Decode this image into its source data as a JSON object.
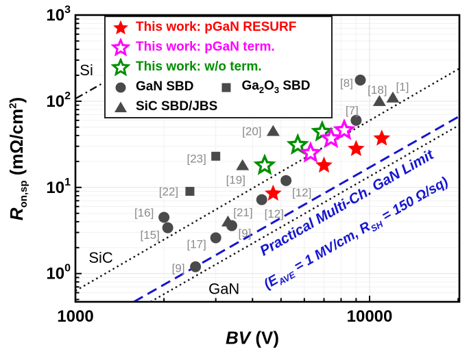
{
  "colors": {
    "red": "#ff0000",
    "magenta": "#ff00ff",
    "green": "#008f00",
    "gray_marker": "#4a4a4a",
    "blue": "#1515d0",
    "ref_label_gray": "#8a8a8a",
    "black": "#000000"
  },
  "axis_labels": {
    "y_var": "R",
    "y_sub": "on,sp",
    "y_mid": " (mΩ/cm",
    "y_sup": "2",
    "y_end": ")",
    "x_var": "BV",
    "x_unit": " (V)"
  },
  "ticks": {
    "x": [
      {
        "value": 1000,
        "label": "1000"
      },
      {
        "value": 10000,
        "label": "10000"
      }
    ],
    "y": [
      {
        "value": 1000,
        "base": "10",
        "exp": "3"
      },
      {
        "value": 100,
        "base": "10",
        "exp": "2"
      },
      {
        "value": 10,
        "base": "10",
        "exp": "1"
      },
      {
        "value": 1,
        "base": "10",
        "exp": "0"
      }
    ]
  },
  "legend": {
    "rows": [
      {
        "items": [
          {
            "marker": "star-filled",
            "color": "#ff0000",
            "label_parts": [
              {
                "t": "This work: pGaN RESURF"
              }
            ],
            "label_color": "#ff0000"
          }
        ]
      },
      {
        "items": [
          {
            "marker": "star-open",
            "color": "#ff00ff",
            "label_parts": [
              {
                "t": "This work: pGaN term."
              }
            ],
            "label_color": "#ff00ff"
          }
        ]
      },
      {
        "items": [
          {
            "marker": "star-open",
            "color": "#008f00",
            "label_parts": [
              {
                "t": "This work: w/o term."
              }
            ],
            "label_color": "#008f00"
          }
        ]
      },
      {
        "items": [
          {
            "marker": "circle",
            "color": "#4a4a4a",
            "label_parts": [
              {
                "t": "GaN SBD"
              }
            ],
            "label_color": "#000000"
          },
          {
            "marker": "square",
            "color": "#4a4a4a",
            "label_parts": [
              {
                "t": "Ga"
              },
              {
                "t": "2",
                "sub": true
              },
              {
                "t": "O"
              },
              {
                "t": "3",
                "sub": true
              },
              {
                "t": " SBD"
              }
            ],
            "label_color": "#000000"
          }
        ]
      },
      {
        "items": [
          {
            "marker": "triangle",
            "color": "#4a4a4a",
            "label_parts": [
              {
                "t": "SiC SBD/JBS"
              }
            ],
            "label_color": "#000000"
          }
        ]
      }
    ]
  },
  "annotation": {
    "line1": "Practical Multi-Ch. GaN Limit",
    "l2_p1": "(E",
    "l2_s1": "AVE",
    "l2_p2": " = 1 MV/cm, R",
    "l2_s2": "SH",
    "l2_p3": " = 150 Ω/sq)",
    "color": "#1515d0"
  },
  "chart_data": {
    "type": "scatter",
    "title": "",
    "xlabel": "BV (V)",
    "ylabel": "R_on,sp (mΩ/cm²)",
    "log_x": true,
    "log_y": true,
    "xlim": [
      1000,
      20200
    ],
    "ylim": [
      0.47,
      1000
    ],
    "grid": true,
    "legend_position": "top-left",
    "series": [
      {
        "name": "GaN SBD",
        "marker": "circle",
        "fill": "filled",
        "color": "#4a4a4a",
        "points": [
          {
            "bv": 2000,
            "ron": 4.5,
            "ref": "[16]",
            "dx": -29,
            "dy": -7
          },
          {
            "bv": 2060,
            "ron": 3.4,
            "ref": "[15]",
            "dx": -26,
            "dy": 10
          },
          {
            "bv": 2560,
            "ron": 1.2,
            "ref": "[9]",
            "dx": -25,
            "dy": 2
          },
          {
            "bv": 3000,
            "ron": 2.6,
            "ref": "[17]",
            "dx": -28,
            "dy": 9
          },
          {
            "bv": 3400,
            "ron": 3.6,
            "ref": "[9]",
            "dx": 19,
            "dy": 11
          },
          {
            "bv": 4300,
            "ron": 7.2,
            "ref": "[12]",
            "dx": 18,
            "dy": 20
          },
          {
            "bv": 5200,
            "ron": 12,
            "ref": "[12]",
            "dx": 23,
            "dy": 17
          },
          {
            "bv": 9000,
            "ron": 60,
            "ref": "[7]",
            "dx": -6,
            "dy": -15
          },
          {
            "bv": 9300,
            "ron": 176,
            "ref": "[8]",
            "dx": -20,
            "dy": 4
          }
        ]
      },
      {
        "name": "Ga2O3 SBD",
        "marker": "square",
        "fill": "filled",
        "color": "#4a4a4a",
        "points": [
          {
            "bv": 2450,
            "ron": 9,
            "ref": "[22]",
            "dx": -31,
            "dy": 0
          },
          {
            "bv": 3000,
            "ron": 23,
            "ref": "[23]",
            "dx": -28,
            "dy": 3
          }
        ]
      },
      {
        "name": "SiC SBD/JBS",
        "marker": "triangle",
        "fill": "filled",
        "color": "#4a4a4a",
        "points": [
          {
            "bv": 3300,
            "ron": 4.0,
            "ref": "[21]",
            "dx": 22,
            "dy": -14
          },
          {
            "bv": 3700,
            "ron": 18,
            "ref": "[19]",
            "dx": -10,
            "dy": 21
          },
          {
            "bv": 4700,
            "ron": 45,
            "ref": "[20]",
            "dx": -31,
            "dy": 0
          },
          {
            "bv": 10800,
            "ron": 100,
            "ref": "[18]",
            "dx": -3,
            "dy": -17
          },
          {
            "bv": 12000,
            "ron": 110,
            "ref": "[1]",
            "dx": 14,
            "dy": -16
          }
        ]
      },
      {
        "name": "This work: w/o term.",
        "marker": "star",
        "fill": "open",
        "color": "#008f00",
        "points": [
          {
            "bv": 4400,
            "ron": 18
          },
          {
            "bv": 5700,
            "ron": 31
          },
          {
            "bv": 6900,
            "ron": 44
          }
        ]
      },
      {
        "name": "This work: pGaN term.",
        "marker": "star",
        "fill": "open",
        "color": "#ff00ff",
        "points": [
          {
            "bv": 6300,
            "ron": 25
          },
          {
            "bv": 7400,
            "ron": 37
          },
          {
            "bv": 8200,
            "ron": 46
          }
        ]
      },
      {
        "name": "This work: pGaN RESURF",
        "marker": "star",
        "fill": "filled",
        "color": "#ff0000",
        "points": [
          {
            "bv": 4700,
            "ron": 8.5
          },
          {
            "bv": 7000,
            "ron": 18
          },
          {
            "bv": 9000,
            "ron": 28
          },
          {
            "bv": 11000,
            "ron": 37
          }
        ]
      }
    ],
    "limit_lines": [
      {
        "name": "Si unipolar limit",
        "style": "dashdot",
        "color": "#111111",
        "p1": [
          1005,
          108
        ],
        "p2": [
          1230,
          160
        ],
        "label": {
          "text": "Si",
          "bv": 1090,
          "ron": 228
        }
      },
      {
        "name": "SiC unipolar limit",
        "style": "dotted",
        "color": "#111111",
        "p1": [
          1000,
          0.63
        ],
        "p2": [
          20200,
          240
        ],
        "label": {
          "text": "SiC",
          "bv": 1220,
          "ron": 1.52
        }
      },
      {
        "name": "GaN unipolar limit",
        "style": "dotted",
        "color": "#111111",
        "p1": [
          1800,
          0.47
        ],
        "p2": [
          20200,
          53
        ],
        "label": {
          "text": "GaN",
          "bv": 3200,
          "ron": 0.657
        }
      },
      {
        "name": "Practical Multi-Ch. GaN Limit",
        "style": "dashed",
        "color": "#1515d0",
        "p1": [
          1580,
          0.47
        ],
        "p2": [
          20200,
          67
        ],
        "label": null
      }
    ]
  }
}
